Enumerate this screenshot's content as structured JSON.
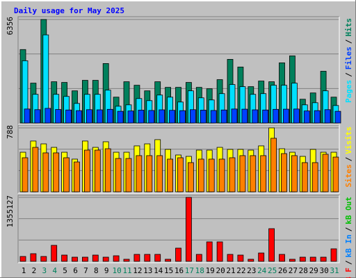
{
  "chart_data": [
    {
      "type": "bar",
      "title": "Daily usage for May 2025",
      "ylim": [
        0,
        6356
      ],
      "yticks": [
        6356
      ],
      "legend_separator": "/",
      "series": [
        {
          "name": "Pages",
          "color": "#00e0ff",
          "values": [
            3822,
            1761,
            5411,
            1761,
            1632,
            1203,
            1761,
            1761,
            2019,
            1031,
            1117,
            1503,
            1374,
            1718,
            1589,
            1289,
            1976,
            1546,
            1417,
            1804,
            2362,
            2233,
            1761,
            1804,
            2319,
            2319,
            2448,
            1117,
            1246,
            1976,
            1074
          ]
        },
        {
          "name": "Files",
          "color": "#0040ff",
          "values": [
            860,
            820,
            900,
            830,
            800,
            760,
            820,
            810,
            840,
            720,
            740,
            790,
            770,
            810,
            780,
            760,
            820,
            790,
            770,
            800,
            860,
            850,
            810,
            800,
            840,
            850,
            860,
            740,
            760,
            820,
            720
          ]
        },
        {
          "name": "Hits",
          "color": "#00805c",
          "values": [
            4510,
            2448,
            6356,
            2534,
            2491,
            1976,
            2620,
            2620,
            3651,
            1589,
            2534,
            2319,
            1976,
            2534,
            2190,
            2190,
            2491,
            2190,
            2104,
            2663,
            3908,
            3436,
            2233,
            2577,
            2534,
            3694,
            4123,
            1460,
            1847,
            3178,
            1589
          ]
        }
      ]
    },
    {
      "type": "bar",
      "ylim": [
        0,
        788
      ],
      "yticks": [
        788
      ],
      "legend_separator": "/",
      "series": [
        {
          "name": "Sites",
          "color": "#ff8000",
          "values": [
            420,
            548,
            480,
            480,
            420,
            368,
            514,
            514,
            531,
            411,
            411,
            446,
            446,
            446,
            403,
            420,
            360,
            403,
            403,
            403,
            420,
            446,
            446,
            446,
            660,
            471,
            446,
            360,
            360,
            463,
            428
          ]
        },
        {
          "name": "Visits",
          "color": "#ffff00",
          "values": [
            488,
            626,
            591,
            548,
            488,
            403,
            626,
            548,
            617,
            488,
            488,
            566,
            591,
            643,
            523,
            454,
            437,
            514,
            514,
            548,
            523,
            523,
            514,
            566,
            788,
            531,
            488,
            437,
            523,
            488,
            488
          ]
        }
      ]
    },
    {
      "type": "bar",
      "ylim": [
        0,
        1355127
      ],
      "yticks": [
        1355127
      ],
      "legend_separator": "/",
      "categories": [
        "1",
        "2",
        "3",
        "4",
        "5",
        "6",
        "7",
        "8",
        "9",
        "10",
        "11",
        "12",
        "13",
        "14",
        "15",
        "16",
        "17",
        "18",
        "19",
        "20",
        "21",
        "22",
        "23",
        "24",
        "25",
        "26",
        "27",
        "28",
        "29",
        "30",
        "31"
      ],
      "category_colors": [
        "#000000",
        "#000000",
        "#00805c",
        "#00805c",
        "#000000",
        "#000000",
        "#000000",
        "#000000",
        "#000000",
        "#00805c",
        "#00805c",
        "#000000",
        "#000000",
        "#000000",
        "#000000",
        "#000000",
        "#00805c",
        "#00805c",
        "#000000",
        "#000000",
        "#000000",
        "#000000",
        "#000000",
        "#00805c",
        "#00805c",
        "#000000",
        "#000000",
        "#000000",
        "#000000",
        "#000000",
        "#00805c"
      ],
      "series": [
        {
          "name": "kB F",
          "color": "#ff0000",
          "values": [
            103110,
            162030,
            103110,
            338790,
            132570,
            88380,
            88380,
            132570,
            88380,
            117840,
            44190,
            147300,
            147300,
            147300,
            44190,
            279870,
            1355127,
            147300,
            412440,
            412440,
            147300,
            132570,
            44190,
            176760,
            692310,
            147300,
            44190,
            88380,
            88380,
            88380,
            265140
          ]
        },
        {
          "name": "kB In",
          "color": "#0080ff",
          "values": [
            0,
            0,
            0,
            0,
            0,
            0,
            0,
            0,
            0,
            0,
            0,
            0,
            0,
            0,
            0,
            0,
            0,
            0,
            0,
            0,
            0,
            0,
            0,
            0,
            0,
            0,
            0,
            0,
            0,
            0,
            0
          ]
        },
        {
          "name": "kB Out",
          "color": "#00c000",
          "values": [
            0,
            0,
            0,
            0,
            0,
            0,
            0,
            0,
            0,
            0,
            0,
            0,
            0,
            0,
            0,
            0,
            0,
            0,
            0,
            0,
            0,
            0,
            0,
            0,
            0,
            0,
            0,
            0,
            0,
            0,
            0
          ]
        }
      ]
    }
  ]
}
